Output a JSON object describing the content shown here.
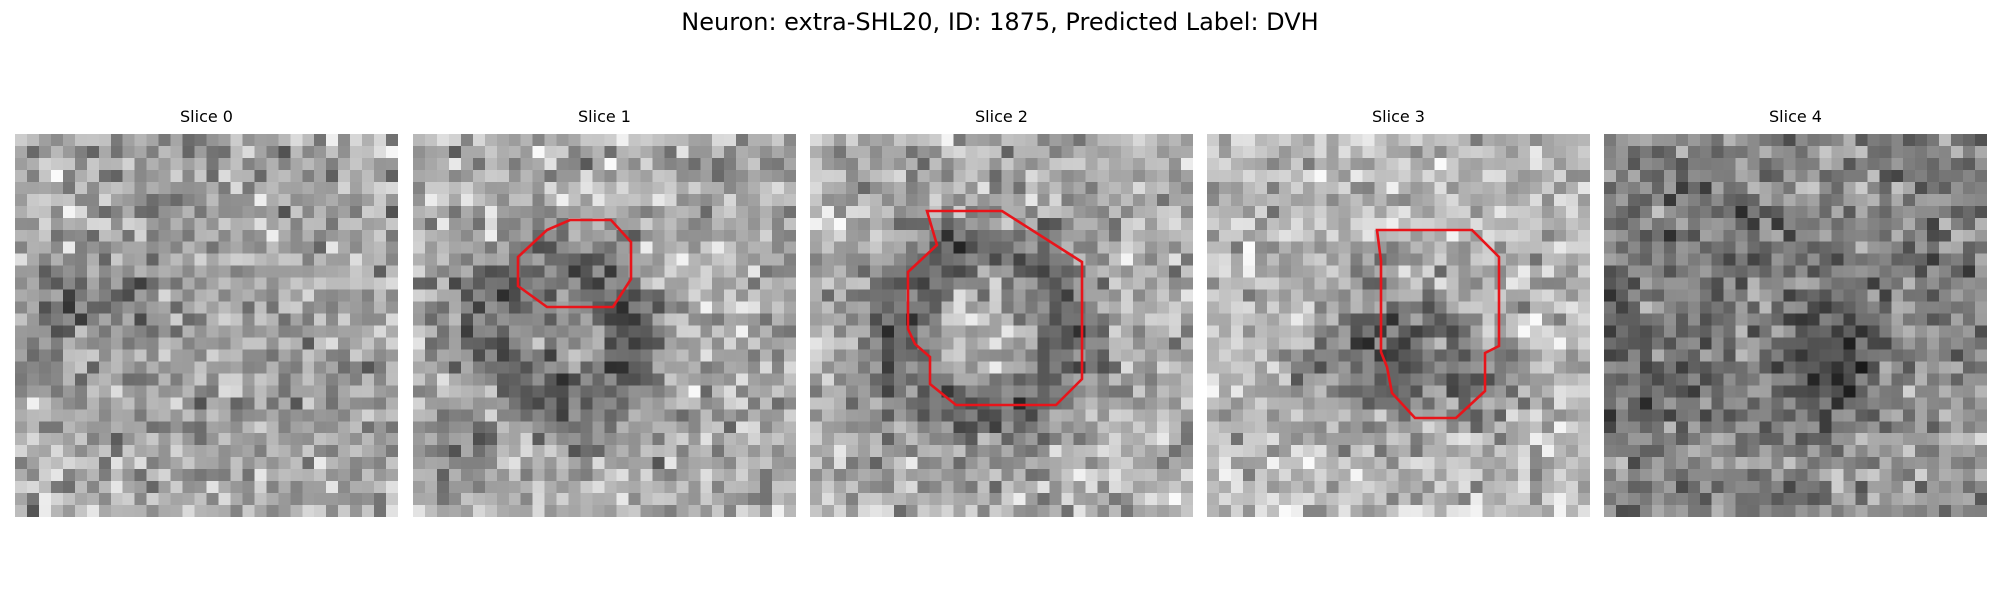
{
  "figure": {
    "title": "Neuron: extra-SHL20, ID: 1875, Predicted Label: DVH"
  },
  "colors": {
    "roi_outline": "#e8141a",
    "background": "#ffffff"
  },
  "image": {
    "colormap": "gray",
    "pixel_grid": "32x32 grayscale microscopy crop",
    "content_note": "noisy fluorescence texture with a dark ring-shaped neuron in slices 1-3"
  },
  "slices": [
    {
      "title": "Slice 0",
      "roi": false
    },
    {
      "title": "Slice 1",
      "roi": true
    },
    {
      "title": "Slice 2",
      "roi": true
    },
    {
      "title": "Slice 3",
      "roi": true
    },
    {
      "title": "Slice 4",
      "roi": false
    }
  ]
}
